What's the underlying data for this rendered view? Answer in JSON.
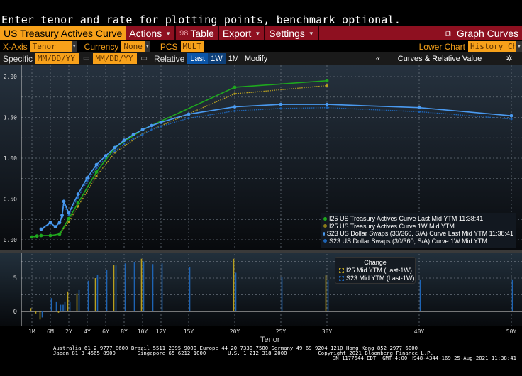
{
  "prompt": "Enter tenor and rate for plotting points, benchmark optional.",
  "toolbar": {
    "title": "US Treasury Actives Curve",
    "actions": "Actions",
    "table_icon": "98",
    "table": "Table",
    "export": "Export",
    "settings": "Settings",
    "graph_curves": "Graph Curves"
  },
  "row2": {
    "xaxis_label": "X-Axis",
    "xaxis_value": "Tenor",
    "currency_label": "Currency",
    "currency_value": "None",
    "pcs_label": "PCS",
    "pcs_value": "MULT",
    "lower_chart_label": "Lower Chart",
    "lower_chart_value": "History Chart"
  },
  "row3": {
    "specific_label": "Specific",
    "date1_placeholder": "MM/DD/YY",
    "date2_placeholder": "MM/DD/YY",
    "relative_label": "Relative",
    "last": "Last",
    "w1": "1W",
    "m1": "1M",
    "modify": "Modify",
    "collapse": "«",
    "curves_rv": "Curves & Relative Value"
  },
  "colors": {
    "green": "#1ea81e",
    "gold": "#b8a020",
    "blue": "#4a9af0",
    "darkblue": "#1e64b4",
    "red_bar": "#8e1020",
    "orange": "#f7a11a"
  },
  "chart_data": [
    {
      "type": "line",
      "title": "",
      "xlabel": "Tenor",
      "ylabel": "",
      "ylim": [
        -0.05,
        2.2
      ],
      "yticks": [
        "0.00",
        "0.50",
        "1.00",
        "1.50",
        "2.00"
      ],
      "ytick_values": [
        0,
        0.5,
        1,
        1.5,
        2
      ],
      "xticks": [
        "1M",
        "6M",
        "2Y",
        "4Y",
        "6Y",
        "8Y",
        "10Y",
        "12Y",
        "15Y",
        "20Y",
        "25Y",
        "30Y",
        "40Y",
        "50Y"
      ],
      "xtick_values": [
        0.0833,
        0.5,
        2,
        4,
        6,
        8,
        10,
        12,
        15,
        20,
        25,
        30,
        40,
        50
      ],
      "grid": true,
      "legend": "bottom-right",
      "series": [
        {
          "name": "I25 US Treasury Actives Curve Last Mid YTM 11:38:41",
          "style": "solid",
          "color": "#1ea81e",
          "x": [
            0.0833,
            0.1667,
            0.25,
            0.5,
            1,
            2,
            3,
            5,
            7,
            10,
            20,
            30
          ],
          "y": [
            0.035,
            0.046,
            0.052,
            0.052,
            0.07,
            0.26,
            0.45,
            0.83,
            1.13,
            1.35,
            1.87,
            1.95
          ]
        },
        {
          "name": "I25 US Treasury Actives Curve 1W Mid YTM",
          "style": "dotted",
          "color": "#b8a020",
          "x": [
            0.0833,
            0.1667,
            0.25,
            0.5,
            1,
            2,
            3,
            5,
            7,
            10,
            20,
            30
          ],
          "y": [
            0.03,
            0.045,
            0.05,
            0.05,
            0.07,
            0.22,
            0.41,
            0.78,
            1.07,
            1.3,
            1.79,
            1.89
          ]
        },
        {
          "name": "S23 US Dollar Swaps (30/360, S/A) Curve Last Mid YTM 11:38:41",
          "style": "solid",
          "color": "#4a9af0",
          "x": [
            0.25,
            0.5,
            0.75,
            1,
            1.25,
            1.5,
            2,
            3,
            4,
            5,
            6,
            7,
            8,
            9,
            10,
            11,
            12,
            15,
            20,
            25,
            30,
            40,
            50
          ],
          "y": [
            0.13,
            0.21,
            0.16,
            0.21,
            0.3,
            0.47,
            0.33,
            0.56,
            0.76,
            0.92,
            1.03,
            1.13,
            1.22,
            1.29,
            1.35,
            1.4,
            1.44,
            1.54,
            1.63,
            1.66,
            1.66,
            1.62,
            1.52
          ]
        },
        {
          "name": "S23 US Dollar Swaps (30/360, S/A) Curve 1W Mid YTM",
          "style": "dotted",
          "color": "#1e64b4",
          "x": [
            0.25,
            0.5,
            0.75,
            1,
            1.25,
            1.5,
            2,
            3,
            4,
            5,
            6,
            7,
            8,
            9,
            10,
            11,
            12,
            15,
            20,
            25,
            30,
            40,
            50
          ],
          "y": [
            0.12,
            0.2,
            0.16,
            0.2,
            0.28,
            0.43,
            0.3,
            0.52,
            0.72,
            0.88,
            1.0,
            1.09,
            1.17,
            1.24,
            1.29,
            1.35,
            1.39,
            1.49,
            1.58,
            1.61,
            1.62,
            1.57,
            1.48
          ]
        }
      ]
    },
    {
      "type": "bar",
      "title": "Change",
      "xlabel": "Tenor",
      "ylim": [
        -2.5,
        10
      ],
      "yticks": [
        "0",
        "5"
      ],
      "ytick_values": [
        0,
        5
      ],
      "grid": true,
      "legend": "top-center",
      "series": [
        {
          "name": "I25 Mid YTM (Last-1W)",
          "color": "#b8a020",
          "x": [
            0.0833,
            0.1667,
            0.25,
            1,
            2,
            3,
            5,
            7,
            10,
            20,
            30
          ],
          "y": [
            0.5,
            -0.3,
            -1.2,
            -0.2,
            3.0,
            2.7,
            5.0,
            7.0,
            7.9,
            7.9,
            5.4
          ]
        },
        {
          "name": "S23 Mid YTM (Last-1W)",
          "color": "#1e64b4",
          "x": [
            0.25,
            0.5,
            0.75,
            1,
            1.25,
            1.5,
            2,
            3,
            4,
            5,
            6,
            7,
            8,
            9,
            10,
            11,
            12,
            15,
            20,
            25,
            30,
            40,
            50
          ],
          "y": [
            -0.9,
            2.0,
            1.5,
            1.0,
            1.0,
            1.5,
            1.5,
            3.2,
            4.6,
            5.5,
            6.2,
            6.9,
            7.2,
            7.4,
            7.5,
            7.1,
            7.2,
            6.7,
            5.8,
            5.2,
            4.7,
            4.8,
            4.8
          ]
        }
      ]
    }
  ],
  "footer": {
    "line1": "Australia 61 2 9777 8600 Brazil 5511 2395 9000 Europe 44 20 7330 7500 Germany 49 69 9204 1210 Hong Kong 852 2977 6000",
    "line2": "Japan 81 3 4565 8900       Singapore 65 6212 1000       U.S. 1 212 318 2000          Copyright 2021 Bloomberg Finance L.P.",
    "line3": "SN 1177644 EDT  GMT-4:00 H948-4344-169 25-Aug-2021 11:38:41"
  }
}
